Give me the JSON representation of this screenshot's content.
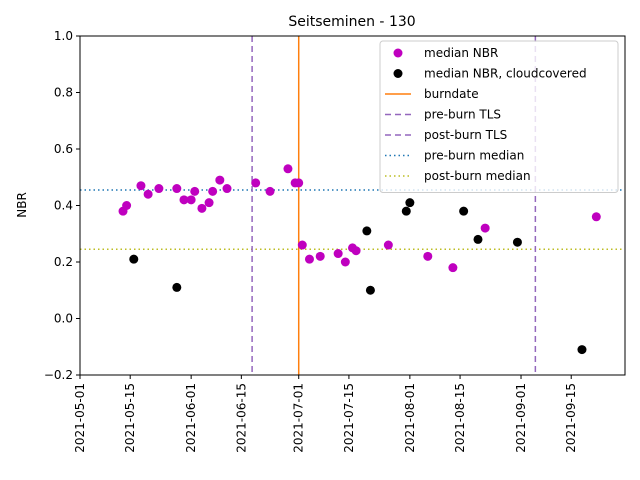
{
  "chart_data": {
    "type": "scatter",
    "title": "Seitseminen - 130",
    "xlabel": "",
    "ylabel": "NBR",
    "xlim": [
      "2021-05-01",
      "2021-09-30"
    ],
    "ylim": [
      -0.2,
      1.0
    ],
    "x_ticks": [
      "2021-05-01",
      "2021-05-15",
      "2021-06-01",
      "2021-06-15",
      "2021-07-01",
      "2021-07-15",
      "2021-08-01",
      "2021-08-15",
      "2021-09-01",
      "2021-09-15"
    ],
    "y_ticks": [
      "−0.2",
      "0.0",
      "0.2",
      "0.4",
      "0.6",
      "0.8",
      "1.0"
    ],
    "grid": false,
    "legend_position": "top-right",
    "series": [
      {
        "name": "median NBR",
        "kind": "point",
        "color": "#bf00bf",
        "points": [
          {
            "x": "2021-05-13",
            "y": 0.38
          },
          {
            "x": "2021-05-14",
            "y": 0.4
          },
          {
            "x": "2021-05-18",
            "y": 0.47
          },
          {
            "x": "2021-05-20",
            "y": 0.44
          },
          {
            "x": "2021-05-23",
            "y": 0.46
          },
          {
            "x": "2021-05-28",
            "y": 0.46
          },
          {
            "x": "2021-05-30",
            "y": 0.42
          },
          {
            "x": "2021-06-01",
            "y": 0.42
          },
          {
            "x": "2021-06-02",
            "y": 0.45
          },
          {
            "x": "2021-06-04",
            "y": 0.39
          },
          {
            "x": "2021-06-06",
            "y": 0.41
          },
          {
            "x": "2021-06-07",
            "y": 0.45
          },
          {
            "x": "2021-06-09",
            "y": 0.49
          },
          {
            "x": "2021-06-11",
            "y": 0.46
          },
          {
            "x": "2021-06-19",
            "y": 0.48
          },
          {
            "x": "2021-06-23",
            "y": 0.45
          },
          {
            "x": "2021-06-28",
            "y": 0.53
          },
          {
            "x": "2021-06-30",
            "y": 0.48
          },
          {
            "x": "2021-07-01",
            "y": 0.48
          },
          {
            "x": "2021-07-02",
            "y": 0.26
          },
          {
            "x": "2021-07-04",
            "y": 0.21
          },
          {
            "x": "2021-07-07",
            "y": 0.22
          },
          {
            "x": "2021-07-12",
            "y": 0.23
          },
          {
            "x": "2021-07-14",
            "y": 0.2
          },
          {
            "x": "2021-07-16",
            "y": 0.25
          },
          {
            "x": "2021-07-17",
            "y": 0.24
          },
          {
            "x": "2021-07-26",
            "y": 0.26
          },
          {
            "x": "2021-08-06",
            "y": 0.22
          },
          {
            "x": "2021-08-13",
            "y": 0.18
          },
          {
            "x": "2021-08-22",
            "y": 0.32
          },
          {
            "x": "2021-09-22",
            "y": 0.36
          }
        ]
      },
      {
        "name": "median NBR, cloudcovered",
        "kind": "point",
        "color": "#000000",
        "points": [
          {
            "x": "2021-05-16",
            "y": 0.21
          },
          {
            "x": "2021-05-28",
            "y": 0.11
          },
          {
            "x": "2021-07-20",
            "y": 0.31
          },
          {
            "x": "2021-07-21",
            "y": 0.1
          },
          {
            "x": "2021-07-31",
            "y": 0.38
          },
          {
            "x": "2021-08-01",
            "y": 0.41
          },
          {
            "x": "2021-08-16",
            "y": 0.38
          },
          {
            "x": "2021-08-20",
            "y": 0.28
          },
          {
            "x": "2021-08-31",
            "y": 0.27
          },
          {
            "x": "2021-09-18",
            "y": -0.11
          }
        ]
      },
      {
        "name": "burndate",
        "kind": "vline",
        "style": "solid",
        "color": "#ff7f0e",
        "x": "2021-07-01"
      },
      {
        "name": "pre-burn TLS",
        "kind": "vline",
        "style": "dashed",
        "color": "#9467bd",
        "x": "2021-06-18"
      },
      {
        "name": "post-burn TLS",
        "kind": "vline",
        "style": "dashed",
        "color": "#9467bd",
        "x": "2021-09-05"
      },
      {
        "name": "pre-burn median",
        "kind": "hline",
        "style": "dotted",
        "color": "#1f77b4",
        "y": 0.455
      },
      {
        "name": "post-burn median",
        "kind": "hline",
        "style": "dotted",
        "color": "#bcbd22",
        "y": 0.245
      }
    ]
  }
}
